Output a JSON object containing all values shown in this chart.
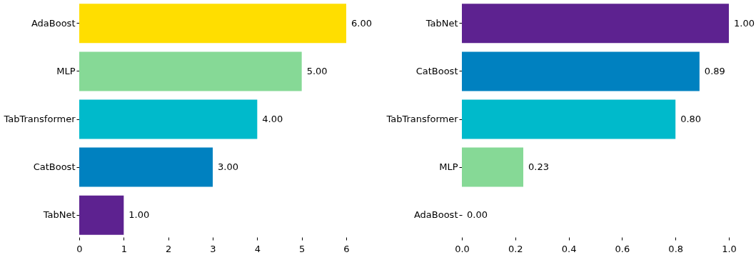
{
  "chart_data": [
    {
      "type": "bar",
      "orientation": "horizontal",
      "categories": [
        "AdaBoost",
        "MLP",
        "TabTransformer",
        "CatBoost",
        "TabNet"
      ],
      "values": [
        6,
        5,
        4,
        3,
        1
      ],
      "colors": [
        "#ffde00",
        "#86d996",
        "#00bacb",
        "#0081c0",
        "#5d2290"
      ],
      "value_labels": [
        "6.00",
        "5.00",
        "4.00",
        "3.00",
        "1.00"
      ],
      "xlim": [
        0,
        6
      ],
      "xticks": [
        0,
        1,
        2,
        3,
        4,
        5,
        6
      ],
      "grid": false
    },
    {
      "type": "bar",
      "orientation": "horizontal",
      "categories": [
        "TabNet",
        "CatBoost",
        "TabTransformer",
        "MLP",
        "AdaBoost"
      ],
      "values": [
        1,
        0.89,
        0.8,
        0.23,
        0
      ],
      "colors": [
        "#5d2290",
        "#0081c0",
        "#00bacb",
        "#86d996",
        "#ffde00"
      ],
      "value_labels": [
        "1.00",
        "0.89",
        "0.80",
        "0.23",
        "0.00"
      ],
      "xlim": [
        0,
        1
      ],
      "xticks": [
        {
          "value": 0,
          "label": "0.0"
        },
        {
          "value": 0.2,
          "label": "0.2"
        },
        {
          "value": 0.4,
          "label": "0.4"
        },
        {
          "value": 0.6,
          "label": "0.6"
        },
        {
          "value": 0.8,
          "label": "0.8"
        },
        {
          "value": 1,
          "label": "1.0"
        }
      ],
      "grid": false
    }
  ]
}
